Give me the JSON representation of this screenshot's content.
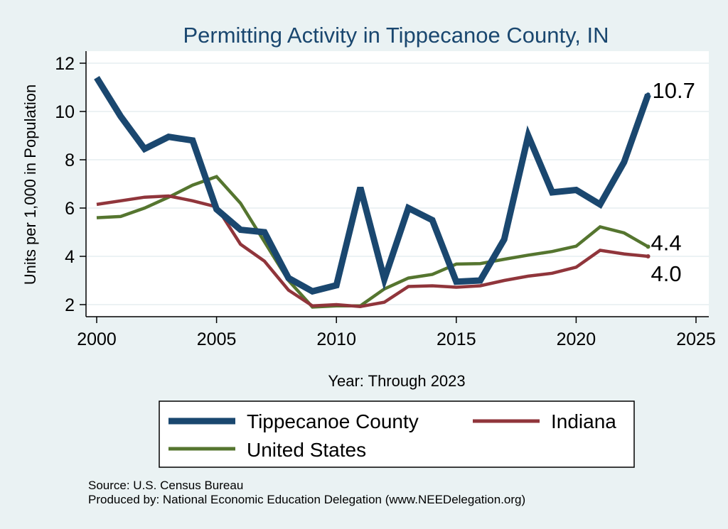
{
  "chart_data": {
    "type": "line",
    "title": "Permitting Activity in Tippecanoe County, IN",
    "xlabel": "Year: Through 2023",
    "ylabel": "Units per 1,000 in Population",
    "xlim": [
      2000,
      2025
    ],
    "ylim": [
      1.6,
      12.4
    ],
    "x_ticks": [
      2000,
      2005,
      2010,
      2015,
      2020,
      2025
    ],
    "y_ticks": [
      2,
      4,
      6,
      8,
      10,
      12
    ],
    "x": [
      2000,
      2001,
      2002,
      2003,
      2004,
      2005,
      2006,
      2007,
      2008,
      2009,
      2010,
      2011,
      2012,
      2013,
      2014,
      2015,
      2016,
      2017,
      2018,
      2019,
      2020,
      2021,
      2022,
      2023
    ],
    "series": [
      {
        "name": "Tippecanoe County",
        "color": "#1a476f",
        "width": "thick",
        "values": [
          11.4,
          9.8,
          8.45,
          8.95,
          8.8,
          5.95,
          5.1,
          5.0,
          3.1,
          2.55,
          2.8,
          6.85,
          3.05,
          6.0,
          5.5,
          2.95,
          3.0,
          4.7,
          9.0,
          6.65,
          6.75,
          6.15,
          7.9,
          10.7
        ],
        "end_label": "10.7"
      },
      {
        "name": "Indiana",
        "color": "#90353b",
        "width": "medium",
        "values": [
          6.15,
          6.3,
          6.45,
          6.5,
          6.3,
          6.05,
          4.5,
          3.8,
          2.6,
          1.95,
          2.0,
          1.92,
          2.1,
          2.75,
          2.78,
          2.72,
          2.78,
          3.0,
          3.18,
          3.3,
          3.55,
          4.25,
          4.1,
          4.0
        ],
        "end_label": "4.0"
      },
      {
        "name": "United States",
        "color": "#55752f",
        "width": "medium",
        "values": [
          5.6,
          5.65,
          6.0,
          6.45,
          6.95,
          7.3,
          6.2,
          4.6,
          3.0,
          1.9,
          1.95,
          1.95,
          2.65,
          3.1,
          3.25,
          3.68,
          3.7,
          3.88,
          4.05,
          4.2,
          4.42,
          5.22,
          4.97,
          4.4
        ],
        "end_label": "4.4"
      }
    ],
    "legend_position": "bottom",
    "grid": true
  },
  "colors": {
    "background": "#eaf2f3",
    "plot_area": "#ffffff",
    "grid": "#e6eef0",
    "title": "#1a476f"
  },
  "source": {
    "line1": "Source: U.S. Census Bureau",
    "line2": "Produced by: National Economic Education Delegation (www.NEEDelegation.org)"
  }
}
